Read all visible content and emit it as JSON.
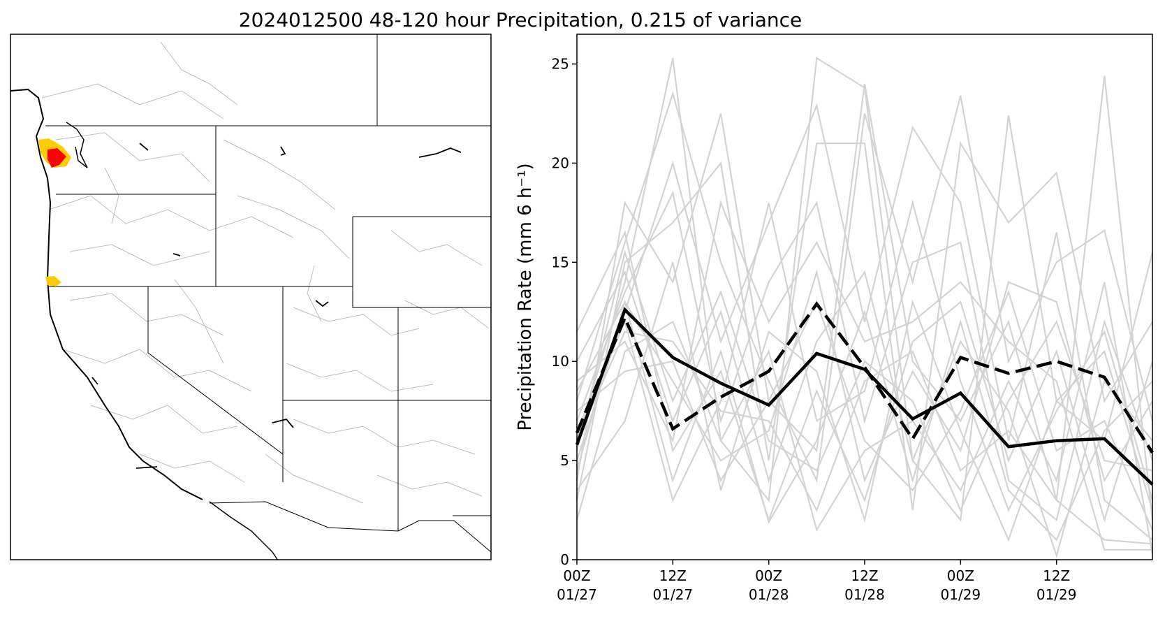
{
  "title": "2024012500 48-120 hour Precipitation, 0.215 of variance",
  "map_panel": {
    "highlight_colors": {
      "high": "#ff0000",
      "medium": "#ffcc00"
    },
    "state_border_color": "#000000",
    "basin_border_color": "#bbbbbb"
  },
  "chart_data": {
    "type": "line",
    "title": "",
    "xlabel": "",
    "ylabel": "Precipitation Rate (mm 6 h⁻¹)",
    "ylim": [
      0,
      26.5
    ],
    "yticks": [
      0,
      5,
      10,
      15,
      20,
      25
    ],
    "x": [
      "01/27 00Z",
      "01/27 06Z",
      "01/27 12Z",
      "01/27 18Z",
      "01/28 00Z",
      "01/28 06Z",
      "01/28 12Z",
      "01/28 18Z",
      "01/29 00Z",
      "01/29 06Z",
      "01/29 12Z",
      "01/29 18Z",
      "01/30 00Z"
    ],
    "xticks": [
      {
        "x": "01/27 00Z",
        "line1": "00Z",
        "line2": "01/27"
      },
      {
        "x": "01/27 12Z",
        "line1": "12Z",
        "line2": "01/27"
      },
      {
        "x": "01/28 00Z",
        "line1": "00Z",
        "line2": "01/28"
      },
      {
        "x": "01/28 12Z",
        "line1": "12Z",
        "line2": "01/28"
      },
      {
        "x": "01/29 00Z",
        "line1": "00Z",
        "line2": "01/29"
      },
      {
        "x": "01/29 12Z",
        "line1": "12Z",
        "line2": "01/29"
      }
    ],
    "grid": false,
    "series": [
      {
        "style": "solid-black",
        "color": "#000000",
        "values": [
          5.8,
          12.6,
          10.2,
          8.9,
          7.8,
          10.4,
          9.6,
          7.1,
          8.4,
          5.7,
          6.0,
          6.1,
          3.8
        ]
      },
      {
        "style": "dashed-black",
        "color": "#000000",
        "values": [
          6.4,
          12.2,
          6.6,
          8.2,
          9.5,
          12.9,
          9.7,
          6.1,
          10.2,
          9.4,
          10.0,
          9.2,
          5.4
        ]
      },
      {
        "style": "member",
        "color": "#d3d3d3",
        "values": [
          4.0,
          18.0,
          14.0,
          22.5,
          8.0,
          5.5,
          24.0,
          10.0,
          7.0,
          12.0,
          3.0,
          24.4,
          2.0
        ]
      },
      {
        "style": "member",
        "color": "#d3d3d3",
        "values": [
          6.0,
          14.0,
          25.3,
          6.0,
          3.0,
          25.3,
          23.8,
          5.0,
          2.0,
          22.4,
          8.0,
          6.0,
          15.5
        ]
      },
      {
        "style": "member",
        "color": "#d3d3d3",
        "values": [
          8.0,
          16.0,
          23.5,
          15.0,
          9.0,
          4.0,
          22.5,
          14.0,
          23.4,
          10.0,
          15.0,
          16.6,
          7.0
        ]
      },
      {
        "style": "member",
        "color": "#d3d3d3",
        "values": [
          5.0,
          12.5,
          20.0,
          11.0,
          17.0,
          22.9,
          12.0,
          21.8,
          18.0,
          6.0,
          16.5,
          3.0,
          1.0
        ]
      },
      {
        "style": "member",
        "color": "#d3d3d3",
        "values": [
          3.0,
          15.0,
          17.0,
          20.0,
          5.0,
          21.0,
          21.0,
          2.5,
          21.0,
          17.0,
          19.5,
          8.0,
          12.0
        ]
      },
      {
        "style": "member",
        "color": "#d3d3d3",
        "values": [
          7.0,
          13.5,
          18.5,
          7.0,
          14.0,
          18.0,
          7.0,
          15.0,
          16.0,
          4.0,
          2.0,
          12.0,
          5.0
        ]
      },
      {
        "style": "member",
        "color": "#d3d3d3",
        "values": [
          9.0,
          11.0,
          6.0,
          18.0,
          12.0,
          16.0,
          11.0,
          12.0,
          14.0,
          11.0,
          9.0,
          0.5,
          0.5
        ]
      },
      {
        "style": "member",
        "color": "#d3d3d3",
        "values": [
          4.5,
          13.0,
          9.0,
          5.0,
          6.5,
          14.5,
          4.0,
          9.5,
          5.5,
          14.0,
          13.0,
          4.0,
          8.0
        ]
      },
      {
        "style": "member",
        "color": "#d3d3d3",
        "values": [
          6.5,
          12.0,
          3.0,
          8.0,
          18.0,
          7.0,
          8.5,
          18.0,
          9.0,
          2.5,
          7.5,
          11.5,
          3.0
        ]
      },
      {
        "style": "member",
        "color": "#d3d3d3",
        "values": [
          10.0,
          14.5,
          7.0,
          12.5,
          4.0,
          11.0,
          14.5,
          5.0,
          11.0,
          7.5,
          0.2,
          9.0,
          6.0
        ]
      },
      {
        "style": "member",
        "color": "#d3d3d3",
        "values": [
          2.0,
          10.5,
          12.0,
          6.0,
          10.5,
          1.5,
          5.5,
          7.0,
          3.5,
          9.0,
          4.0,
          14.0,
          0.3
        ]
      },
      {
        "style": "member",
        "color": "#d3d3d3",
        "values": [
          11.5,
          16.5,
          5.5,
          9.5,
          2.0,
          8.5,
          3.0,
          11.0,
          13.0,
          5.0,
          10.5,
          2.0,
          10.0
        ]
      },
      {
        "style": "member",
        "color": "#d3d3d3",
        "values": [
          7.5,
          9.5,
          10.0,
          4.0,
          8.0,
          13.0,
          6.0,
          3.5,
          7.5,
          13.5,
          5.5,
          7.0,
          1.5
        ]
      },
      {
        "style": "member",
        "color": "#d3d3d3",
        "values": [
          5.5,
          15.5,
          8.0,
          13.5,
          6.0,
          4.5,
          10.0,
          8.0,
          2.5,
          8.0,
          12.0,
          5.0,
          4.5
        ]
      },
      {
        "style": "member",
        "color": "#d3d3d3",
        "values": [
          3.5,
          7.0,
          15.0,
          3.5,
          11.5,
          9.5,
          2.0,
          13.0,
          6.5,
          1.0,
          8.0,
          10.5,
          2.5
        ]
      },
      {
        "style": "member",
        "color": "#d3d3d3",
        "values": [
          8.5,
          13.0,
          4.0,
          10.5,
          1.9,
          6.0,
          12.5,
          4.0,
          12.0,
          3.5,
          1.0,
          6.5,
          9.0
        ]
      },
      {
        "style": "member",
        "color": "#d3d3d3",
        "values": [
          6.0,
          11.5,
          11.0,
          7.5,
          7.0,
          2.5,
          9.0,
          10.5,
          4.5,
          6.5,
          3.0,
          1.0,
          0.8
        ]
      }
    ]
  }
}
